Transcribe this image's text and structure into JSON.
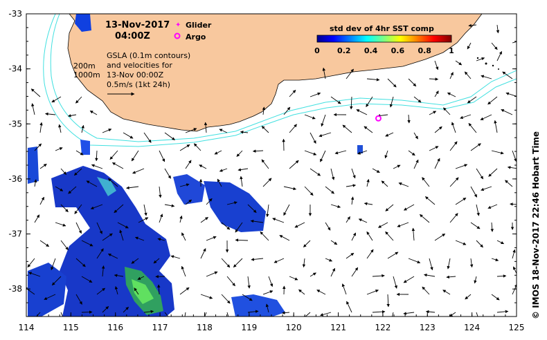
{
  "title": {
    "date": "13-Nov-2017",
    "time": "04:00Z"
  },
  "legend": {
    "glider_label": "Glider",
    "argo_label": "Argo",
    "glider_color": "#ff00ff",
    "argo_color": "#ff00ff"
  },
  "colorbar": {
    "title": "std dev of 4hr SST comp",
    "ticks": [
      "0",
      "0.2",
      "0.4",
      "0.6",
      "0.8",
      "1"
    ],
    "range": [
      0,
      1
    ],
    "colormap": "jet"
  },
  "notes": {
    "contour_200": "200m",
    "contour_1000": "1000m",
    "gsla_line1": "GSLA (0.1m contours)",
    "gsla_line2": "and velocities for",
    "gsla_line3": "13-Nov 00:00Z",
    "gsla_line4": "0.5m/s (1kt 24h)"
  },
  "axes": {
    "lon_range": [
      114,
      125
    ],
    "lat_range": [
      -38.5,
      -33
    ],
    "x_ticks": [
      "114",
      "115",
      "116",
      "117",
      "118",
      "119",
      "120",
      "121",
      "122",
      "123",
      "124",
      "125"
    ],
    "y_ticks": [
      "-33",
      "-34",
      "-35",
      "-36",
      "-37",
      "-38"
    ]
  },
  "markers": {
    "argo": [
      {
        "lon": 121.9,
        "lat": -34.9
      }
    ]
  },
  "credit": "© IMOS 18-Nov-2017 22:46 Hobart Time",
  "colors": {
    "land": "#f8c89e",
    "bathy_contour": "#40e0e0",
    "frame": "#000000",
    "sst_low": "#0000ff",
    "sst_mid": "#00ff80"
  }
}
